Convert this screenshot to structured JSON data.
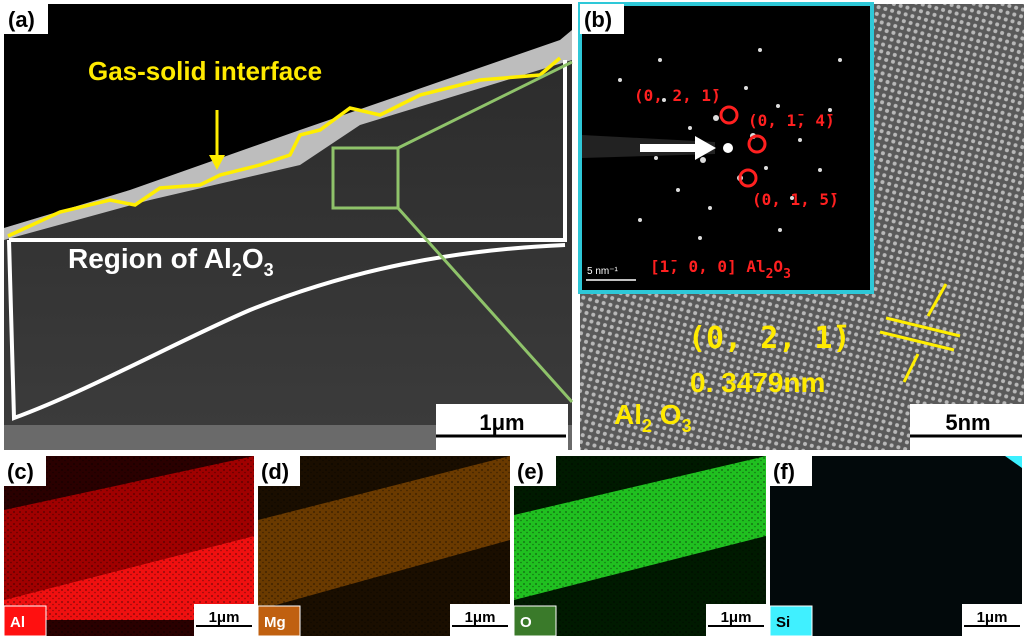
{
  "panel_a": {
    "label": "(a)",
    "interface_label": "Gas-solid interface",
    "region_label": [
      "Region of Al",
      "2",
      "O",
      "3"
    ],
    "scale_bar": "1μm"
  },
  "panel_b": {
    "label": "(b)",
    "spots": [
      "(0, 2, 1̄)",
      "(0, 1̄, 4̄)",
      "(0, 1, 5̄)"
    ],
    "zone_axis": [
      "[1̄, 0, 0] Al",
      "2",
      "O",
      "3"
    ],
    "inset_scale": "5 nm⁻¹",
    "plane": "(0, 2, 1̄)",
    "spacing": "0. 3479nm",
    "phase": [
      "Al",
      "2",
      " O",
      "3"
    ],
    "scale_bar": "5nm"
  },
  "maps": [
    {
      "label": "(c)",
      "element": "Al",
      "scale_bar": "1μm"
    },
    {
      "label": "(d)",
      "element": "Mg",
      "scale_bar": "1μm"
    },
    {
      "label": "(e)",
      "element": "O",
      "scale_bar": "1μm"
    },
    {
      "label": "(f)",
      "element": "Si",
      "scale_bar": "1μm"
    }
  ]
}
